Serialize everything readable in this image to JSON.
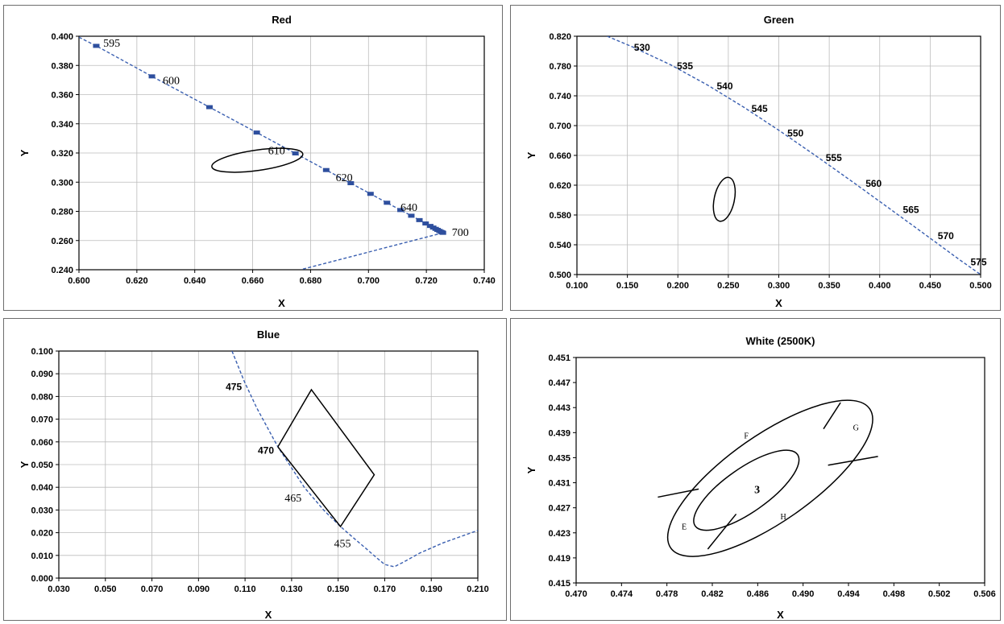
{
  "chart_data": [
    {
      "id": "red",
      "type": "scatter",
      "title": "Red",
      "xlabel": "X",
      "ylabel": "Y",
      "xlim": [
        0.6,
        0.75
      ],
      "ylim": [
        0.24,
        0.4
      ],
      "xticks": [
        "0.600",
        "0.620",
        "0.640",
        "0.660",
        "0.680",
        "0.700",
        "0.720",
        "0.740"
      ],
      "yticks": [
        "0.240",
        "0.260",
        "0.280",
        "0.300",
        "0.320",
        "0.340",
        "0.360",
        "0.380",
        "0.400"
      ],
      "grid": true,
      "locus": {
        "name": "spectral locus",
        "x": [
          0.6,
          0.6064,
          0.627,
          0.6483,
          0.6658,
          0.6801,
          0.6915,
          0.7006,
          0.7079,
          0.714,
          0.719,
          0.723,
          0.726,
          0.7283,
          0.73,
          0.7311,
          0.732,
          0.7327,
          0.7334,
          0.734,
          0.7344,
          0.7347
        ],
        "y": [
          0.3993,
          0.3934,
          0.3725,
          0.3514,
          0.334,
          0.3197,
          0.3083,
          0.2993,
          0.292,
          0.2859,
          0.2809,
          0.277,
          0.274,
          0.2717,
          0.27,
          0.2689,
          0.268,
          0.2673,
          0.2666,
          0.266,
          0.2656,
          0.2653
        ]
      },
      "markers_x": [
        0.6064,
        0.627,
        0.6483,
        0.6658,
        0.6801,
        0.6915,
        0.7006,
        0.7079,
        0.714,
        0.719,
        0.723,
        0.726,
        0.7283,
        0.73,
        0.7311,
        0.732,
        0.7327,
        0.7334,
        0.734,
        0.7344,
        0.7347
      ],
      "markers_y": [
        0.3934,
        0.3725,
        0.3514,
        0.334,
        0.3197,
        0.3083,
        0.2993,
        0.292,
        0.2859,
        0.2809,
        0.277,
        0.274,
        0.2717,
        0.27,
        0.2689,
        0.268,
        0.2673,
        0.2666,
        0.266,
        0.2656,
        0.2653
      ],
      "purple_line": {
        "x": [
          0.7347,
          0.682
        ],
        "y": [
          0.2653,
          0.24
        ]
      },
      "ellipse": {
        "cx": 0.666,
        "cy": 0.315,
        "rx": 0.017,
        "ry": 0.007,
        "rot": -8
      },
      "labels": [
        {
          "text": "595",
          "x": 0.609,
          "y": 0.3955
        },
        {
          "text": "600",
          "x": 0.631,
          "y": 0.37
        },
        {
          "text": "610",
          "x": 0.67,
          "y": 0.322
        },
        {
          "text": "620",
          "x": 0.695,
          "y": 0.3035
        },
        {
          "text": "640",
          "x": 0.719,
          "y": 0.283
        },
        {
          "text": "700",
          "x": 0.738,
          "y": 0.266
        }
      ]
    },
    {
      "id": "green",
      "type": "scatter",
      "title": "Green",
      "xlabel": "X",
      "ylabel": "Y",
      "xlim": [
        0.1,
        0.5
      ],
      "ylim": [
        0.5,
        0.82
      ],
      "xticks": [
        "0.100",
        "0.150",
        "0.200",
        "0.250",
        "0.300",
        "0.350",
        "0.400",
        "0.450",
        "0.500"
      ],
      "yticks": [
        "0.500",
        "0.540",
        "0.580",
        "0.620",
        "0.660",
        "0.700",
        "0.740",
        "0.780",
        "0.820"
      ],
      "grid": true,
      "locus": {
        "name": "spectral locus",
        "x": [
          0.13,
          0.1547,
          0.1929,
          0.2296,
          0.2658,
          0.3016,
          0.3373,
          0.3731,
          0.4087,
          0.4441,
          0.4788,
          0.5
        ],
        "y": [
          0.82,
          0.8059,
          0.7816,
          0.7543,
          0.7243,
          0.6923,
          0.6589,
          0.6245,
          0.5896,
          0.5547,
          0.5202,
          0.5
        ]
      },
      "ellipse": {
        "cx": 0.246,
        "cy": 0.601,
        "rx": 0.01,
        "ry": 0.03,
        "rot": 12
      },
      "labels": [
        {
          "text": "530",
          "x": 0.1565,
          "y": 0.806
        },
        {
          "text": "535",
          "x": 0.199,
          "y": 0.781
        },
        {
          "text": "540",
          "x": 0.2385,
          "y": 0.754
        },
        {
          "text": "545",
          "x": 0.273,
          "y": 0.724
        },
        {
          "text": "550",
          "x": 0.3085,
          "y": 0.691
        },
        {
          "text": "555",
          "x": 0.3465,
          "y": 0.658
        },
        {
          "text": "560",
          "x": 0.386,
          "y": 0.623
        },
        {
          "text": "565",
          "x": 0.423,
          "y": 0.588
        },
        {
          "text": "570",
          "x": 0.4575,
          "y": 0.553
        },
        {
          "text": "575",
          "x": 0.49,
          "y": 0.518
        }
      ]
    },
    {
      "id": "blue",
      "type": "scatter",
      "title": "Blue",
      "xlabel": "X",
      "ylabel": "Y",
      "xlim": [
        0.03,
        0.21
      ],
      "ylim": [
        0.0,
        0.1
      ],
      "xticks": [
        "0.030",
        "0.050",
        "0.070",
        "0.090",
        "0.110",
        "0.130",
        "0.150",
        "0.170",
        "0.190",
        "0.210"
      ],
      "yticks": [
        "0.000",
        "0.010",
        "0.020",
        "0.030",
        "0.040",
        "0.050",
        "0.060",
        "0.070",
        "0.080",
        "0.090",
        "0.100"
      ],
      "grid": true,
      "locus": {
        "name": "spectral locus",
        "x": [
          0.1044,
          0.1096,
          0.115,
          0.1241,
          0.1355,
          0.144,
          0.151,
          0.1566,
          0.162,
          0.1666,
          0.17,
          0.1741,
          0.178,
          0.185,
          0.195,
          0.21
        ],
        "y": [
          0.1,
          0.0868,
          0.075,
          0.0578,
          0.0399,
          0.0297,
          0.0227,
          0.0177,
          0.013,
          0.0089,
          0.006,
          0.005,
          0.007,
          0.011,
          0.0155,
          0.021
        ]
      },
      "quad": {
        "x": [
          0.1241,
          0.1385,
          0.1655,
          0.151,
          0.1241
        ],
        "y": [
          0.0578,
          0.083,
          0.0455,
          0.0227,
          0.0578
        ]
      },
      "labels": [
        {
          "text": "475",
          "x": 0.1017,
          "y": 0.0845,
          "style": "sans"
        },
        {
          "text": "470",
          "x": 0.1155,
          "y": 0.0565,
          "style": "sans"
        },
        {
          "text": "465",
          "x": 0.127,
          "y": 0.0355,
          "style": "serif"
        },
        {
          "text": "455",
          "x": 0.1482,
          "y": 0.0155,
          "style": "serif"
        }
      ]
    },
    {
      "id": "white",
      "type": "scatter",
      "title": "White (2500K)",
      "xlabel": "X",
      "ylabel": "Y",
      "xlim": [
        0.47,
        0.506
      ],
      "ylim": [
        0.415,
        0.451
      ],
      "xticks": [
        "0.470",
        "0.474",
        "0.478",
        "0.482",
        "0.486",
        "0.490",
        "0.494",
        "0.498",
        "0.502",
        "0.506"
      ],
      "yticks": [
        "0.415",
        "0.419",
        "0.423",
        "0.427",
        "0.431",
        "0.435",
        "0.439",
        "0.443",
        "0.447",
        "0.451"
      ],
      "grid": false,
      "outer_ellipse": {
        "cx": 0.4871,
        "cy": 0.4317,
        "rx": 0.0107,
        "ry": 0.0069,
        "rot": -35
      },
      "inner_ellipse": {
        "cx": 0.485,
        "cy": 0.4298,
        "rx": 0.0055,
        "ry": 0.0035,
        "rot": -35
      },
      "dividers": [
        {
          "x": [
            0.4933,
            0.4918
          ],
          "y": [
            0.4438,
            0.4396
          ]
        },
        {
          "x": [
            0.4966,
            0.4922
          ],
          "y": [
            0.4352,
            0.4338
          ]
        },
        {
          "x": [
            0.4816,
            0.4841
          ],
          "y": [
            0.4204,
            0.426
          ]
        },
        {
          "x": [
            0.4772,
            0.4808
          ],
          "y": [
            0.4287,
            0.43
          ]
        }
      ],
      "labels": [
        {
          "text": "3",
          "x": 0.4857,
          "y": 0.43,
          "style": "num"
        },
        {
          "text": "G",
          "x": 0.4944,
          "y": 0.44,
          "style": "small"
        },
        {
          "text": "F",
          "x": 0.4848,
          "y": 0.4387,
          "style": "small"
        },
        {
          "text": "E",
          "x": 0.4793,
          "y": 0.4242,
          "style": "small"
        },
        {
          "text": "H",
          "x": 0.488,
          "y": 0.4258,
          "style": "small"
        }
      ]
    }
  ]
}
